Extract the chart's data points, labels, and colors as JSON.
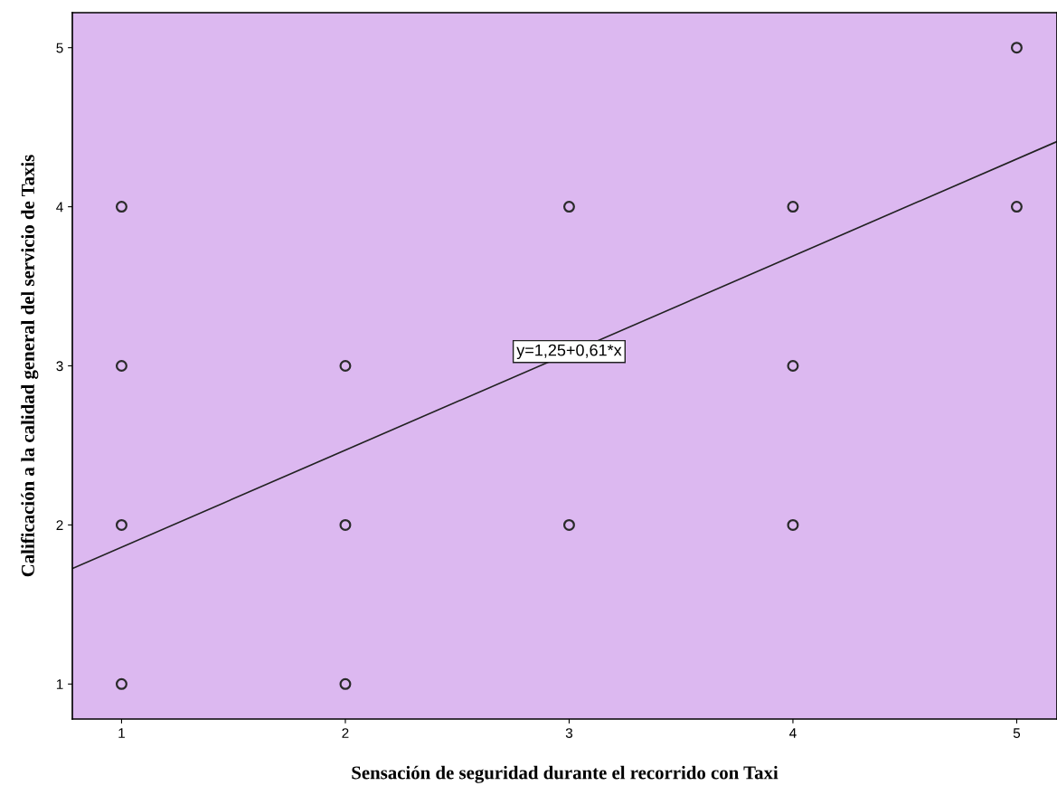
{
  "chart_data": {
    "type": "scatter",
    "xlabel": "Sensación de seguridad durante el recorrido con Taxi",
    "ylabel": "Calificación a la calidad general del servicio de Taxis",
    "xlim": [
      0.78,
      5.18
    ],
    "ylim": [
      0.78,
      5.22
    ],
    "xticks": [
      1,
      2,
      3,
      4,
      5
    ],
    "yticks": [
      1,
      2,
      3,
      4,
      5
    ],
    "grid": false,
    "annotations": [
      {
        "text": "y=1,25+0,61*x",
        "x": 3.0,
        "y": 3.09
      }
    ],
    "series": [
      {
        "marker": "circle",
        "color": "#2a2a2a",
        "x": [
          1,
          1,
          1,
          1,
          2,
          2,
          2,
          3,
          3,
          4,
          4,
          4,
          5,
          5
        ],
        "values": [
          4,
          3,
          2,
          1,
          3,
          2,
          1,
          4,
          2,
          4,
          3,
          2,
          5,
          4
        ]
      },
      {
        "type": "line",
        "color": "#222222",
        "x": [
          0.78,
          5.18
        ],
        "values": [
          1.726,
          4.41
        ],
        "line_style": "solid"
      }
    ]
  }
}
